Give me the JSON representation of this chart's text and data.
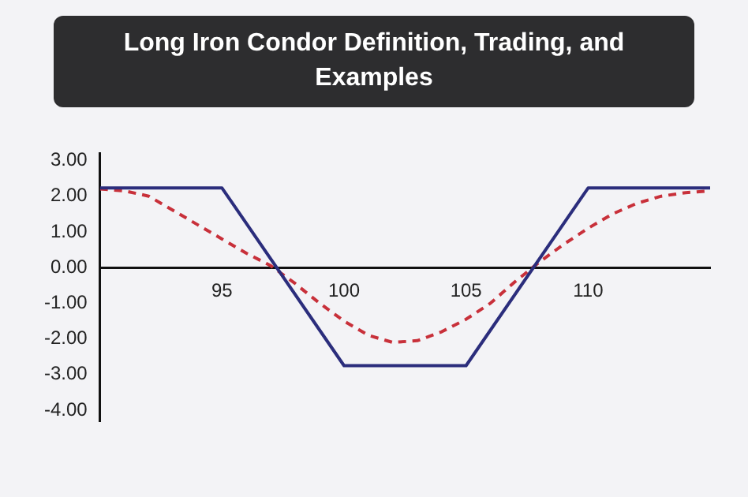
{
  "chart_data": {
    "type": "line",
    "title": "Long Iron Condor Definition, Trading, and Examples",
    "xlim": [
      90,
      115
    ],
    "xticks": [
      95,
      100,
      105,
      110
    ],
    "ylim": [
      -4.3,
      3.2
    ],
    "yticks": [
      {
        "value": 3,
        "label": "3.00"
      },
      {
        "value": 2,
        "label": "2.00"
      },
      {
        "value": 1,
        "label": "1.00"
      },
      {
        "value": 0,
        "label": "0.00"
      },
      {
        "value": -1,
        "label": "-1.00"
      },
      {
        "value": -2,
        "label": "-2.00"
      },
      {
        "value": -3,
        "label": "-3.00"
      },
      {
        "value": -4,
        "label": "-4.00"
      }
    ],
    "grid": false,
    "legend": false,
    "marker": "none",
    "series": [
      {
        "color": "#2b2d7c",
        "line_style": "solid",
        "x": [
          90,
          95,
          100,
          105,
          110,
          115
        ],
        "values": [
          2.23,
          2.23,
          -2.75,
          -2.75,
          2.23,
          2.23
        ]
      },
      {
        "color": "#c8303a",
        "line_style": "dashed",
        "x": [
          90,
          91,
          92,
          93,
          94,
          95,
          96,
          97,
          98,
          99,
          100,
          101,
          102,
          103,
          104,
          105,
          106,
          107,
          108,
          109,
          110,
          111,
          112,
          113,
          114,
          115
        ],
        "values": [
          2.2,
          2.15,
          2.0,
          1.6,
          1.2,
          0.8,
          0.4,
          0.05,
          -0.45,
          -1.0,
          -1.5,
          -1.9,
          -2.1,
          -2.05,
          -1.8,
          -1.45,
          -1.0,
          -0.4,
          0.15,
          0.65,
          1.1,
          1.5,
          1.8,
          2.0,
          2.1,
          2.15
        ]
      }
    ]
  }
}
